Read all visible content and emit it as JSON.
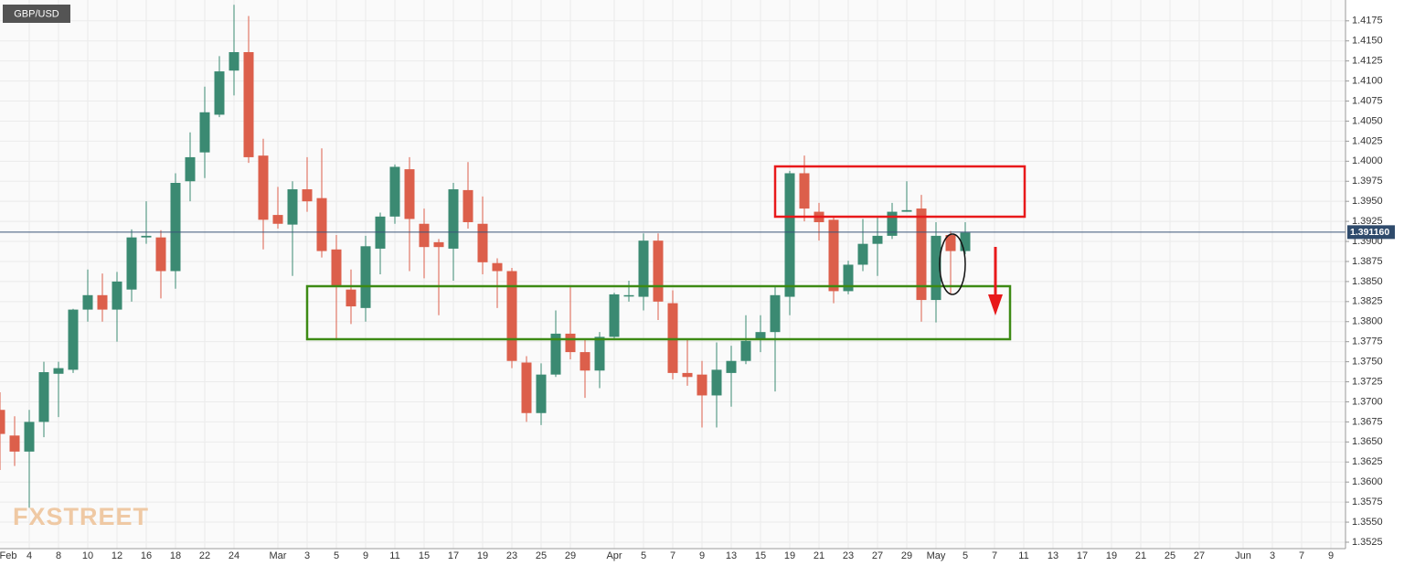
{
  "chart_data": {
    "type": "candlestick",
    "title": "GBP/USD",
    "watermark": "FXSTREET",
    "categories": [
      "Feb",
      null,
      null,
      "4",
      null,
      "8",
      null,
      "10",
      null,
      "12",
      null,
      "16",
      null,
      "18",
      null,
      "22",
      null,
      "24",
      null,
      null,
      "Mar",
      null,
      "3",
      null,
      "5",
      null,
      "9",
      null,
      "11",
      null,
      "15",
      null,
      "17",
      null,
      "19",
      null,
      "23",
      null,
      "25",
      null,
      "29",
      null,
      null,
      "Apr",
      null,
      "5",
      null,
      "7",
      null,
      "9",
      null,
      "13",
      null,
      "15",
      null,
      "19",
      null,
      "21",
      null,
      "23",
      null,
      "27",
      null,
      "29",
      null,
      "May",
      null,
      "5",
      null,
      "7",
      null,
      "11",
      null,
      "13",
      null,
      "17",
      null,
      "19",
      null,
      "21",
      null,
      "25",
      null,
      "27",
      null,
      null,
      "Jun",
      null,
      "3",
      null,
      "7",
      null,
      "9"
    ],
    "open": [
      null,
      1.369,
      1.3658,
      1.3638,
      1.3675,
      1.3735,
      1.374,
      1.3815,
      1.3833,
      1.3815,
      1.384,
      1.3905,
      1.3905,
      1.3863,
      1.3975,
      1.4011,
      1.4058,
      1.4113,
      1.4136,
      1.4007,
      1.3933,
      1.3921,
      1.3965,
      1.3954,
      1.389,
      1.384,
      1.3817,
      1.3891,
      1.3931,
      1.399,
      1.3922,
      1.3899,
      1.3891,
      1.3964,
      1.3922,
      1.3873,
      1.3863,
      1.3749,
      1.3686,
      1.3734,
      1.3785,
      1.3762,
      1.3739,
      1.3781,
      1.3832,
      1.3831,
      1.3901,
      1.3823,
      1.3736,
      1.3734,
      1.3708,
      1.3736,
      1.3751,
      1.3777,
      1.3787,
      1.3831,
      1.3985,
      1.3937,
      1.3927,
      1.3838,
      1.3871,
      1.3897,
      1.3907,
      1.3937,
      1.3941,
      1.3827,
      1.3908,
      1.3888,
      null,
      null,
      null,
      null,
      null,
      null,
      null,
      null,
      null,
      null,
      null,
      null,
      null,
      null,
      null,
      null,
      null,
      null,
      null,
      null,
      null,
      null,
      null,
      null,
      null
    ],
    "high": [
      null,
      1.3712,
      1.3682,
      1.369,
      1.375,
      1.375,
      1.3816,
      1.3865,
      1.386,
      1.3862,
      1.3915,
      1.395,
      1.3914,
      1.3985,
      1.4036,
      1.4093,
      1.4131,
      1.4195,
      1.4181,
      1.4028,
      1.3968,
      1.3975,
      1.4005,
      1.4016,
      1.3908,
      1.3865,
      1.3907,
      1.3936,
      1.3996,
      1.4005,
      1.3941,
      1.3903,
      1.3973,
      1.3999,
      1.3956,
      1.3879,
      1.3867,
      1.3757,
      1.3748,
      1.3814,
      1.3844,
      1.3779,
      1.3787,
      1.3836,
      1.3851,
      1.391,
      1.391,
      1.3839,
      1.3777,
      1.3751,
      1.3774,
      1.377,
      1.3808,
      1.3808,
      1.3844,
      1.3988,
      1.4007,
      1.3948,
      1.3931,
      1.3876,
      1.3928,
      1.3931,
      1.3948,
      1.3975,
      1.3958,
      1.3924,
      1.3913,
      1.3924,
      null,
      null,
      null,
      null,
      null,
      null,
      null,
      null,
      null,
      null,
      null,
      null,
      null,
      null,
      null,
      null,
      null,
      null,
      null,
      null,
      null,
      null,
      null,
      null,
      null
    ],
    "low": [
      null,
      1.3615,
      1.362,
      1.3568,
      1.3656,
      1.3681,
      1.3736,
      1.38,
      1.38,
      1.3775,
      1.3825,
      1.3897,
      1.3829,
      1.3841,
      1.395,
      1.3979,
      1.4055,
      1.4082,
      1.3998,
      1.389,
      1.3916,
      1.3857,
      1.3937,
      1.388,
      1.3777,
      1.3797,
      1.38,
      1.3859,
      1.3922,
      1.3863,
      1.3854,
      1.3808,
      1.3851,
      1.3916,
      1.3859,
      1.3817,
      1.3742,
      1.3675,
      1.3671,
      1.3731,
      1.3753,
      1.3705,
      1.3717,
      1.3777,
      1.3825,
      1.3814,
      1.3802,
      1.3728,
      1.372,
      1.3668,
      1.3668,
      1.3694,
      1.3747,
      1.3762,
      1.3713,
      1.3808,
      1.3925,
      1.3901,
      1.3823,
      1.3834,
      1.3863,
      1.3857,
      1.3903,
      1.3937,
      1.38,
      1.3799,
      1.3834,
      1.3884,
      null,
      null,
      null,
      null,
      null,
      null,
      null,
      null,
      null,
      null,
      null,
      null,
      null,
      null,
      null,
      null,
      null,
      null,
      null,
      null,
      null,
      null,
      null,
      null,
      null
    ],
    "close": [
      null,
      1.366,
      1.3638,
      1.3675,
      1.3737,
      1.3742,
      1.3815,
      1.3833,
      1.3815,
      1.385,
      1.3905,
      1.3907,
      1.3863,
      1.3973,
      1.4005,
      1.4061,
      1.4112,
      1.4136,
      1.4005,
      1.3927,
      1.3922,
      1.3965,
      1.395,
      1.3888,
      1.3844,
      1.3819,
      1.3894,
      1.3931,
      1.3993,
      1.3928,
      1.3893,
      1.3893,
      1.3965,
      1.3924,
      1.3874,
      1.3863,
      1.3751,
      1.3686,
      1.3734,
      1.3785,
      1.3762,
      1.3739,
      1.3781,
      1.3834,
      1.3833,
      1.3901,
      1.3825,
      1.3736,
      1.3731,
      1.3708,
      1.374,
      1.3751,
      1.3776,
      1.3787,
      1.3833,
      1.3985,
      1.3941,
      1.3924,
      1.3838,
      1.3871,
      1.3897,
      1.3907,
      1.3937,
      1.3939,
      1.3827,
      1.3907,
      1.3888,
      1.3911,
      null,
      null,
      null,
      null,
      null,
      null,
      null,
      null,
      null,
      null,
      null,
      null,
      null,
      null,
      null,
      null,
      null,
      null,
      null,
      null,
      null,
      null,
      null,
      null,
      null
    ],
    "up_color": "#3b8a72",
    "down_color": "#dc5f4b",
    "current_price": {
      "value": 1.39116,
      "label": "1.391160"
    },
    "ylim": [
      1.3517,
      1.4201
    ],
    "yticks": [
      1.3525,
      {
        "value": 1.355,
        "label": "1.3550"
      },
      1.3575,
      {
        "value": 1.36,
        "label": "1.3600"
      },
      1.3625,
      {
        "value": 1.365,
        "label": "1.3650"
      },
      1.3675,
      {
        "value": 1.37,
        "label": "1.3700"
      },
      1.3725,
      {
        "value": 1.375,
        "label": "1.3750"
      },
      1.3775,
      {
        "value": 1.38,
        "label": "1.3800"
      },
      1.3825,
      {
        "value": 1.385,
        "label": "1.3850"
      },
      1.3875,
      {
        "value": 1.39,
        "label": "1.3900"
      },
      1.3925,
      {
        "value": 1.395,
        "label": "1.3950"
      },
      1.3975,
      {
        "value": 1.4,
        "label": "1.4000"
      },
      1.4025,
      {
        "value": 1.405,
        "label": "1.4050"
      },
      1.4075,
      {
        "value": 1.41,
        "label": "1.4100"
      },
      1.4125,
      {
        "value": 1.415,
        "label": "1.4150"
      },
      1.4175
    ],
    "grid": true
  }
}
